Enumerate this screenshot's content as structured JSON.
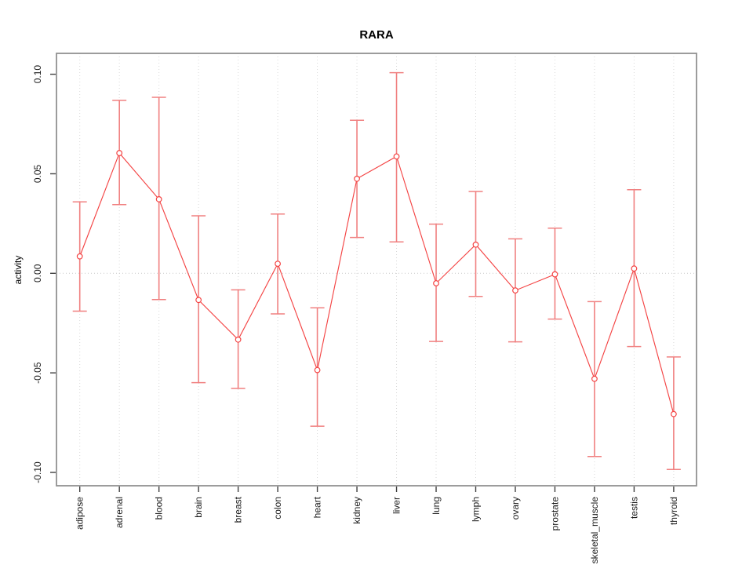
{
  "chart_data": {
    "type": "line",
    "title": "RARA",
    "xlabel": "",
    "ylabel": "activity",
    "categories": [
      "adipose",
      "adrenal",
      "blood",
      "brain",
      "breast",
      "colon",
      "heart",
      "kidney",
      "liver",
      "lung",
      "lymph",
      "ovary",
      "prostate",
      "skeletal_muscle",
      "testis",
      "thyroid"
    ],
    "series": [
      {
        "name": "activity_mean",
        "values": [
          0.0085,
          0.0604,
          0.0372,
          -0.0134,
          -0.0333,
          0.0048,
          -0.0486,
          0.0475,
          0.0587,
          -0.005,
          0.0144,
          -0.0086,
          -0.0005,
          -0.053,
          0.0024,
          -0.0707
        ]
      },
      {
        "name": "ci_lower",
        "values": [
          -0.019,
          0.0345,
          -0.0132,
          -0.0549,
          -0.0578,
          -0.0204,
          -0.0768,
          0.018,
          0.0158,
          -0.0342,
          -0.0116,
          -0.0344,
          -0.023,
          -0.092,
          -0.0368,
          -0.0985
        ]
      },
      {
        "name": "ci_upper",
        "values": [
          0.0359,
          0.0869,
          0.0884,
          0.0289,
          -0.0083,
          0.0298,
          -0.0173,
          0.0769,
          0.1008,
          0.0247,
          0.0411,
          0.0173,
          0.0227,
          -0.0142,
          0.042,
          -0.042
        ]
      }
    ],
    "yticks": [
      0.1,
      0.05,
      0.0,
      -0.05,
      -0.1
    ],
    "ytick_labels": [
      "0.10",
      "0.05",
      "0.00",
      "-0.05",
      "-0.10"
    ],
    "ylim": [
      -0.107,
      0.111
    ],
    "grid": "dotted vertical line at each category; dotted horizontal line at y=0",
    "legend": "none",
    "marker": "open-circle",
    "x_label_rotation": -90,
    "y_label_rotation": -90,
    "colors": {
      "line": "#f44444",
      "marker_stroke": "#f44444",
      "marker_fill": "#ffffff",
      "error_bar": "#f08080",
      "grid": "#d9d9d9",
      "zero_line": "#c9c9c9",
      "box": "#919191",
      "tick": "#404040",
      "tick_label": "#1a1a1a",
      "title": "#000000"
    }
  }
}
